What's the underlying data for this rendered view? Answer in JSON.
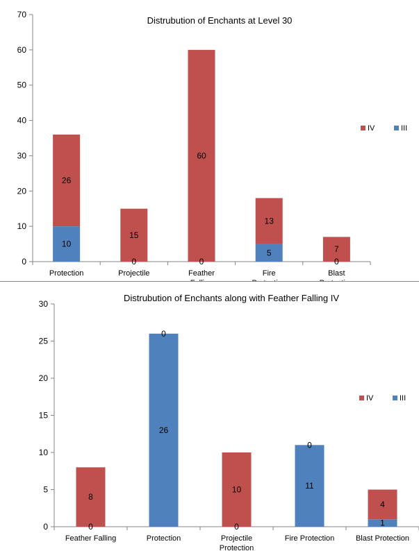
{
  "colors": {
    "IV": "#c0504d",
    "III": "#4f81bd",
    "axis": "#868686"
  },
  "chart_data": [
    {
      "type": "bar",
      "stacked": true,
      "title": "Distrubution of Enchants at Level 30",
      "categories": [
        "Protection",
        "Projectile",
        "Feather Falling",
        "Fire Protection",
        "Blast Protection"
      ],
      "series": [
        {
          "name": "IV",
          "values": [
            26,
            15,
            60,
            13,
            7
          ]
        },
        {
          "name": "III",
          "values": [
            10,
            0,
            0,
            5,
            0
          ]
        }
      ],
      "ylim": [
        0,
        70
      ],
      "yticks": [
        0,
        10,
        20,
        30,
        40,
        50,
        60,
        70
      ],
      "grid": false,
      "legend": "right"
    },
    {
      "type": "bar",
      "stacked": true,
      "title": "Distrubution of Enchants along with Feather Falling IV",
      "categories": [
        "Feather Falling",
        "Protection",
        "Projectile Protection",
        "Fire Protection",
        "Blast Protection"
      ],
      "series": [
        {
          "name": "IV",
          "values": [
            8,
            0,
            10,
            0,
            4
          ]
        },
        {
          "name": "III",
          "values": [
            0,
            26,
            0,
            11,
            1
          ]
        }
      ],
      "ylim": [
        0,
        30
      ],
      "yticks": [
        0,
        5,
        10,
        15,
        20,
        25,
        30
      ],
      "grid": false,
      "legend": "right"
    }
  ]
}
